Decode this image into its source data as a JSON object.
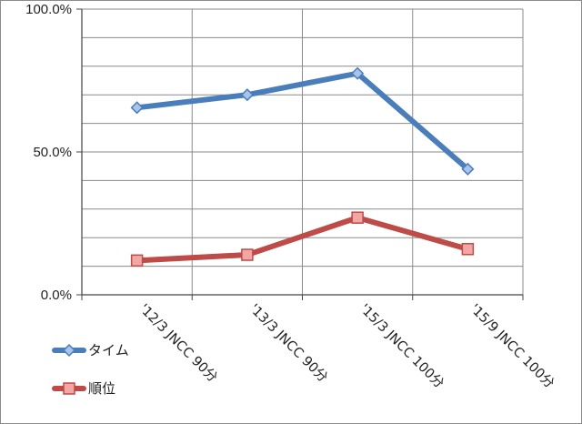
{
  "chart_data": {
    "type": "line",
    "categories": [
      "'12/3 JNCC 90分",
      "'13/3 JNCC 90分",
      "'15/3 JNCC 100分",
      "'15/9 JNCC 100分"
    ],
    "series": [
      {
        "name": "タイム",
        "values": [
          65.5,
          70.0,
          77.5,
          44.0
        ],
        "color": "#4a7ebb",
        "marker": "diamond"
      },
      {
        "name": "順位",
        "values": [
          12.0,
          14.0,
          27.0,
          16.0
        ],
        "color": "#be4b48",
        "marker": "square"
      }
    ],
    "yticks": [
      {
        "value": 0,
        "label": "0.0%"
      },
      {
        "value": 50,
        "label": "50.0%"
      },
      {
        "value": 100,
        "label": "100.0%"
      }
    ],
    "ylim": [
      0,
      100
    ],
    "minor_gridlines_every": 10,
    "grid": true,
    "legend": "bottom-left",
    "title": "",
    "xlabel": "",
    "ylabel": ""
  }
}
